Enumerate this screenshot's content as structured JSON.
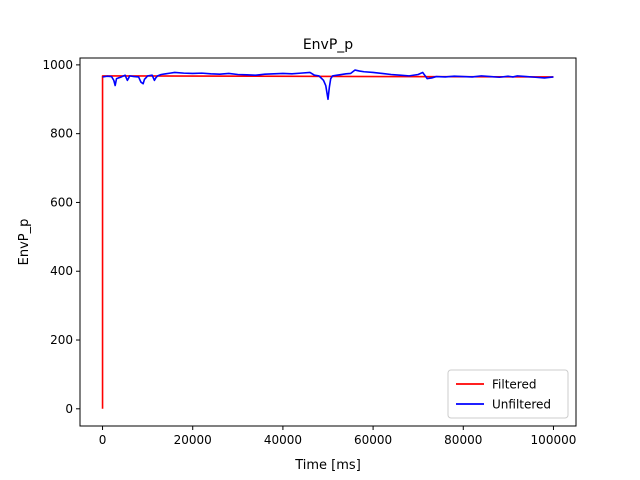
{
  "chart_data": {
    "type": "line",
    "title": "EnvP_p",
    "xlabel": "Time [ms]",
    "ylabel": "EnvP_p",
    "xlim": [
      -5000,
      105000
    ],
    "ylim": [
      -50,
      1020
    ],
    "x_ticks": [
      0,
      20000,
      40000,
      60000,
      80000,
      100000
    ],
    "x_tick_labels": [
      "0",
      "20000",
      "40000",
      "60000",
      "80000",
      "100000"
    ],
    "y_ticks": [
      0,
      200,
      400,
      600,
      800,
      1000
    ],
    "y_tick_labels": [
      "0",
      "200",
      "400",
      "600",
      "800",
      "1000"
    ],
    "grid": false,
    "legend": {
      "position": "lower-right",
      "entries": [
        "Filtered",
        "Unfiltered"
      ]
    },
    "series": [
      {
        "name": "Filtered",
        "color": "#ff0000",
        "x": [
          0,
          0,
          0,
          100000
        ],
        "y": [
          0,
          965,
          968,
          965
        ]
      },
      {
        "name": "Unfiltered",
        "color": "#0000ff",
        "x": [
          0,
          1000,
          2000,
          2500,
          2800,
          3100,
          3500,
          4000,
          5000,
          5500,
          5800,
          6000,
          7000,
          8000,
          8500,
          9000,
          9300,
          9600,
          10000,
          11000,
          11500,
          11800,
          12200,
          13000,
          14000,
          15000,
          16000,
          18000,
          20000,
          22000,
          24000,
          26000,
          28000,
          30000,
          32000,
          34000,
          36000,
          38000,
          40000,
          42000,
          44000,
          46000,
          47000,
          48000,
          49000,
          49500,
          50000,
          50300,
          50600,
          51000,
          52000,
          54000,
          55000,
          56000,
          57000,
          58000,
          60000,
          62000,
          64000,
          66000,
          68000,
          70000,
          71000,
          72000,
          73000,
          74000,
          76000,
          78000,
          80000,
          82000,
          84000,
          86000,
          88000,
          90000,
          91000,
          92000,
          94000,
          96000,
          98000,
          100000
        ],
        "y": [
          965,
          967,
          966,
          955,
          940,
          960,
          962,
          964,
          970,
          955,
          962,
          968,
          966,
          965,
          950,
          945,
          958,
          962,
          968,
          970,
          955,
          962,
          968,
          972,
          974,
          976,
          978,
          976,
          975,
          976,
          974,
          973,
          975,
          972,
          971,
          970,
          973,
          974,
          975,
          974,
          976,
          978,
          970,
          968,
          955,
          940,
          900,
          935,
          960,
          968,
          970,
          974,
          975,
          985,
          982,
          980,
          978,
          975,
          972,
          970,
          968,
          972,
          978,
          960,
          962,
          966,
          965,
          967,
          966,
          965,
          968,
          966,
          964,
          967,
          965,
          968,
          966,
          964,
          962,
          965
        ]
      }
    ]
  }
}
